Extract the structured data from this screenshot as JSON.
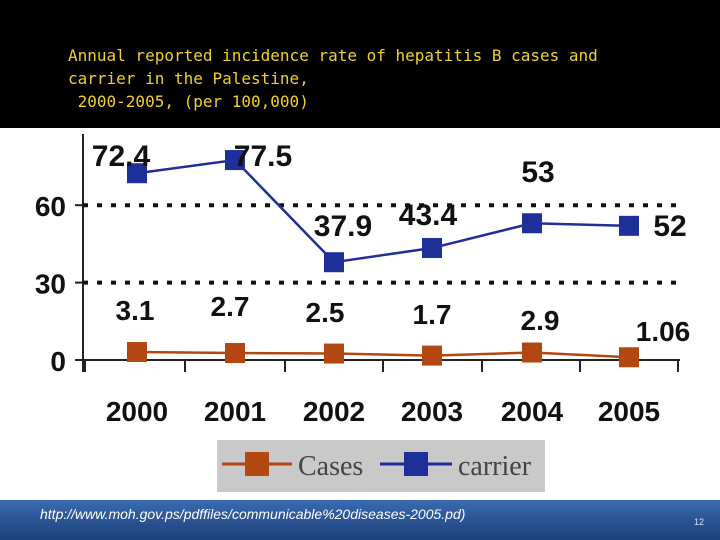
{
  "slide": {
    "title": "Annual reported incidence rate of hepatitis B cases and\ncarrier in the Palestine,\n 2000-2005, (per 100,000)",
    "source": "http://www.moh.gov.ps/pdffiles/communicable%20diseases-2005.pd)",
    "page_number": "12"
  },
  "colors": {
    "cases": "#b34712",
    "carrier": "#1f2f9a",
    "title": "#f0d030",
    "footer": "#2a559a"
  },
  "chart_data": {
    "type": "line",
    "title": "Annual reported incidence rate of hepatitis B cases and carrier in the Palestine, 2000-2005, (per 100,000)",
    "categories": [
      "2000",
      "2001",
      "2002",
      "2003",
      "2004",
      "2005"
    ],
    "y_ticks": [
      "0",
      "30",
      "60"
    ],
    "ylim": [
      0,
      80
    ],
    "grid": "dotted horizontal lines at 30 and 60",
    "legend_position": "bottom",
    "series": [
      {
        "name": "Cases",
        "values": [
          3.1,
          2.7,
          2.5,
          1.7,
          2.9,
          1.06
        ],
        "labels": [
          "3.1",
          "2.7",
          "2.5",
          "1.7",
          "2.9",
          "1.06"
        ]
      },
      {
        "name": "carrier",
        "values": [
          72.4,
          77.5,
          37.9,
          43.4,
          53,
          52
        ],
        "labels": [
          "72.4",
          "77.5",
          "37.9",
          "43.4",
          "53",
          "52"
        ]
      }
    ]
  }
}
